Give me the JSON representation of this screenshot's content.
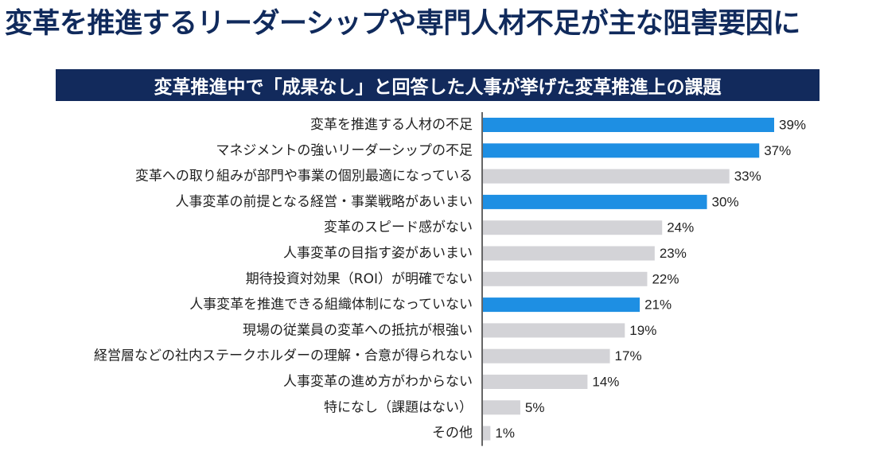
{
  "headline": "変革を推進するリーダーシップや専門人材不足が主な阻害要因に",
  "chart_data": {
    "type": "bar",
    "orientation": "horizontal",
    "title": "変革推進中で「成果なし」と回答した人事が挙げた変革推進上の課題",
    "xlim": [
      0,
      39
    ],
    "grid": false,
    "legend": "none",
    "colors": {
      "highlight": "#1e8fe3",
      "normal": "#d3d3d7",
      "axis": "#333333"
    },
    "categories": [
      "変革を推進する人材の不足",
      "マネジメントの強いリーダーシップの不足",
      "変革への取り組みが部門や事業の個別最適になっている",
      "人事変革の前提となる経営・事業戦略があいまい",
      "変革のスピード感がない",
      "人事変革の目指す姿があいまい",
      "期待投資対効果（ROI）が明確でない",
      "人事変革を推進できる組織体制になっていない",
      "現場の従業員の変革への抵抗が根強い",
      "経営層などの社内ステークホルダーの理解・合意が得られない",
      "人事変革の進め方がわからない",
      "特になし（課題はない）",
      "その他"
    ],
    "values": [
      39,
      37,
      33,
      30,
      24,
      23,
      22,
      21,
      19,
      17,
      14,
      5,
      1
    ],
    "value_labels": [
      "39%",
      "37%",
      "33%",
      "30%",
      "24%",
      "23%",
      "22%",
      "21%",
      "19%",
      "17%",
      "14%",
      "5%",
      "1%"
    ],
    "highlighted": [
      true,
      true,
      false,
      true,
      false,
      false,
      false,
      true,
      false,
      false,
      false,
      false,
      false
    ]
  }
}
